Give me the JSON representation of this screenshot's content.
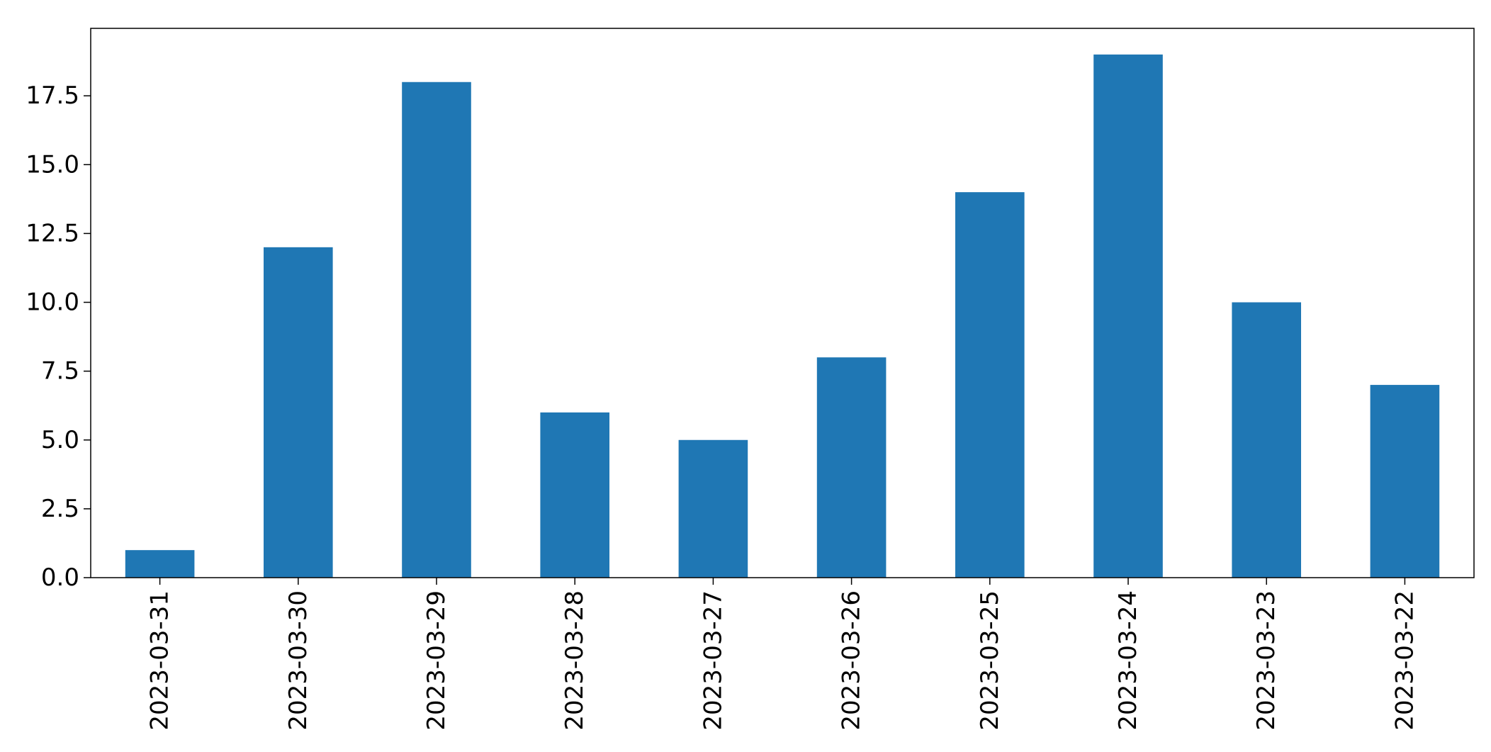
{
  "chart_data": {
    "type": "bar",
    "title": "",
    "xlabel": "",
    "ylabel": "",
    "categories": [
      "2023-03-31",
      "2023-03-30",
      "2023-03-29",
      "2023-03-28",
      "2023-03-27",
      "2023-03-26",
      "2023-03-25",
      "2023-03-24",
      "2023-03-23",
      "2023-03-22"
    ],
    "values": [
      1,
      12,
      18,
      6,
      5,
      8,
      14,
      19,
      10,
      7
    ],
    "ylim": [
      0,
      19.95
    ],
    "yticks": [
      "0.0",
      "2.5",
      "5.0",
      "7.5",
      "10.0",
      "12.5",
      "15.0",
      "17.5"
    ],
    "ytick_values": [
      0,
      2.5,
      5,
      7.5,
      10,
      12.5,
      15,
      17.5
    ],
    "grid": false,
    "legend": "none",
    "bar_color": "#1f77b4",
    "x_tick_rotation": "vertical"
  }
}
